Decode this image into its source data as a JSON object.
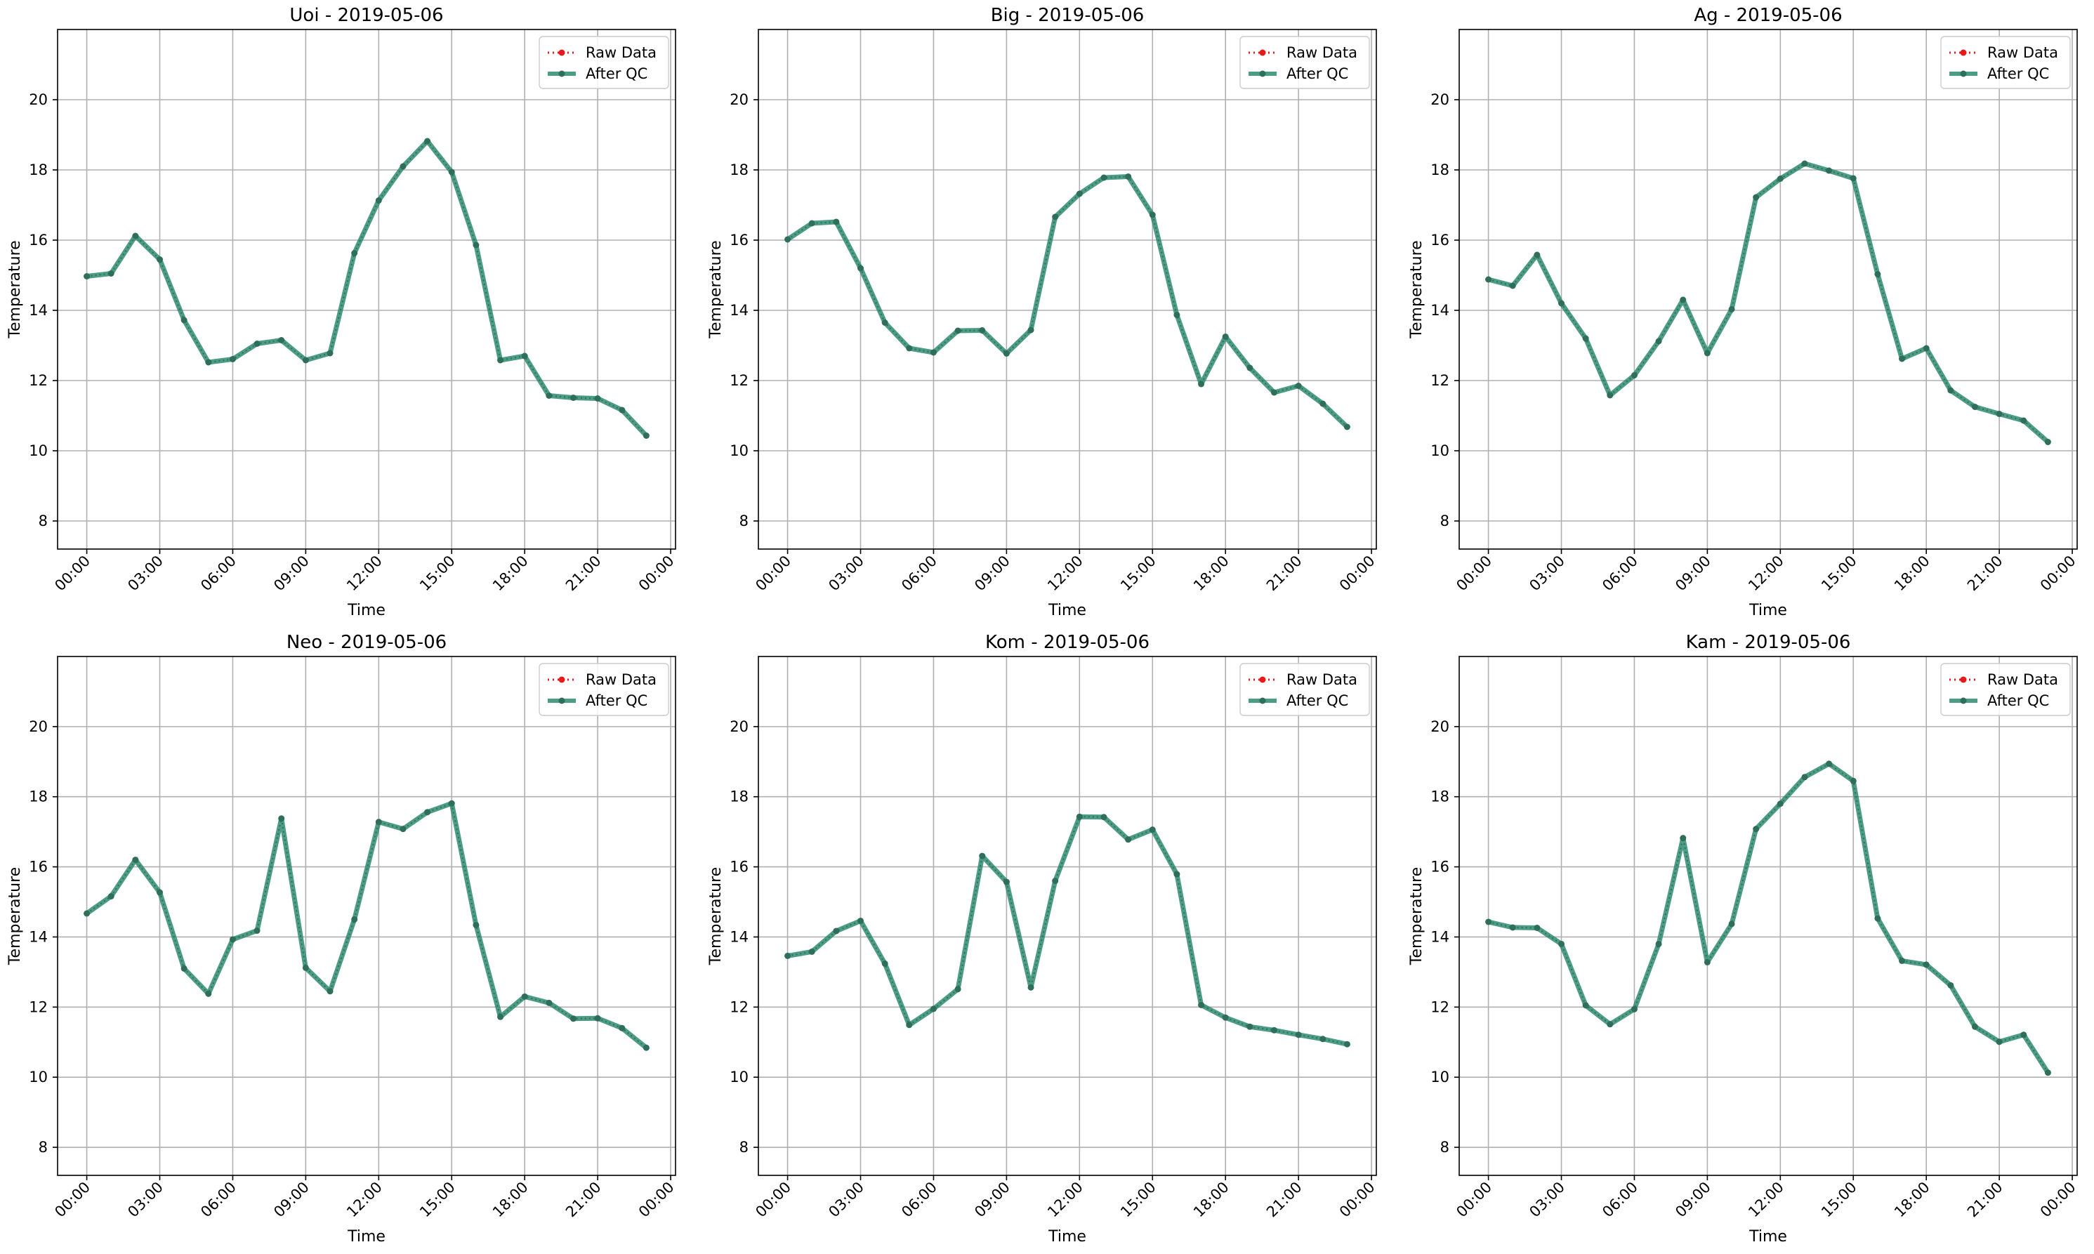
{
  "colors": {
    "raw": "#e41a1c",
    "qc": "#2e8b70",
    "qc_marker": "#2f6e5a",
    "grid": "#b0b0b0"
  },
  "shared": {
    "xlabel": "Time",
    "ylabel": "Temperature",
    "legend_raw": "Raw Data",
    "legend_qc": "After QC",
    "legend_placement": "top-right",
    "grid": true,
    "ylim": [
      7.2,
      22.0
    ],
    "y_ticks": [
      8,
      10,
      12,
      14,
      16,
      18,
      20
    ],
    "x_range_hours": [
      -1.2,
      24.2
    ],
    "x_tick_hours": [
      0,
      3,
      6,
      9,
      12,
      15,
      18,
      21,
      24
    ],
    "x_tick_labels": [
      "00:00",
      "03:00",
      "06:00",
      "09:00",
      "12:00",
      "15:00",
      "18:00",
      "21:00",
      "00:00"
    ]
  },
  "chart_data": [
    {
      "type": "line",
      "title": "Uoi - 2019-05-06",
      "x": [
        0,
        1,
        2,
        3,
        4,
        5,
        6,
        7,
        8,
        9,
        10,
        11,
        12,
        13,
        14,
        15,
        16,
        17,
        18,
        19,
        20,
        21,
        22,
        23
      ],
      "series": [
        {
          "name": "Raw Data",
          "values": [
            14.97,
            15.05,
            16.12,
            15.45,
            13.72,
            12.52,
            12.61,
            13.05,
            13.15,
            12.58,
            12.78,
            15.63,
            17.13,
            18.1,
            18.82,
            17.94,
            15.86,
            12.58,
            12.7,
            11.57,
            11.51,
            11.49,
            11.16,
            10.43
          ]
        },
        {
          "name": "After QC",
          "values": [
            14.97,
            15.05,
            16.12,
            15.45,
            13.72,
            12.52,
            12.61,
            13.05,
            13.15,
            12.58,
            12.78,
            15.63,
            17.13,
            18.1,
            18.82,
            17.94,
            15.86,
            12.58,
            12.7,
            11.57,
            11.51,
            11.49,
            11.16,
            10.43
          ]
        }
      ]
    },
    {
      "type": "line",
      "title": "Big - 2019-05-06",
      "x": [
        0,
        1,
        2,
        3,
        4,
        5,
        6,
        7,
        8,
        9,
        10,
        11,
        12,
        13,
        14,
        15,
        16,
        17,
        18,
        19,
        20,
        21,
        22,
        23
      ],
      "series": [
        {
          "name": "Raw Data",
          "values": [
            16.02,
            16.48,
            16.52,
            15.2,
            13.65,
            12.92,
            12.8,
            13.42,
            13.43,
            12.77,
            13.44,
            16.66,
            17.32,
            17.78,
            17.81,
            16.72,
            13.87,
            11.9,
            13.25,
            12.36,
            11.66,
            11.85,
            11.34,
            10.68
          ]
        },
        {
          "name": "After QC",
          "values": [
            16.02,
            16.48,
            16.52,
            15.2,
            13.65,
            12.92,
            12.8,
            13.42,
            13.43,
            12.77,
            13.44,
            16.66,
            17.32,
            17.78,
            17.81,
            16.72,
            13.87,
            11.9,
            13.25,
            12.36,
            11.66,
            11.85,
            11.34,
            10.68
          ]
        }
      ]
    },
    {
      "type": "line",
      "title": "Ag - 2019-05-06",
      "x": [
        0,
        1,
        2,
        3,
        4,
        5,
        6,
        7,
        8,
        9,
        10,
        11,
        12,
        13,
        14,
        15,
        16,
        17,
        18,
        19,
        20,
        21,
        22,
        23
      ],
      "series": [
        {
          "name": "Raw Data",
          "values": [
            14.88,
            14.7,
            15.58,
            14.2,
            13.2,
            11.58,
            12.15,
            13.12,
            14.3,
            12.78,
            14.03,
            17.22,
            17.75,
            18.18,
            17.98,
            17.76,
            15.03,
            12.62,
            12.92,
            11.72,
            11.25,
            11.05,
            10.86,
            10.25
          ]
        },
        {
          "name": "After QC",
          "values": [
            14.88,
            14.7,
            15.58,
            14.2,
            13.2,
            11.58,
            12.15,
            13.12,
            14.3,
            12.78,
            14.03,
            17.22,
            17.75,
            18.18,
            17.98,
            17.76,
            15.03,
            12.62,
            12.92,
            11.72,
            11.25,
            11.05,
            10.86,
            10.25
          ]
        }
      ]
    },
    {
      "type": "line",
      "title": "Neo - 2019-05-06",
      "x": [
        0,
        1,
        2,
        3,
        4,
        5,
        6,
        7,
        8,
        9,
        10,
        11,
        12,
        13,
        14,
        15,
        16,
        17,
        18,
        19,
        20,
        21,
        22,
        23
      ],
      "series": [
        {
          "name": "Raw Data",
          "values": [
            14.67,
            15.16,
            16.2,
            15.27,
            13.1,
            12.38,
            13.93,
            14.18,
            17.38,
            13.12,
            12.45,
            14.5,
            17.28,
            17.08,
            17.56,
            17.81,
            14.34,
            11.72,
            12.3,
            12.12,
            11.67,
            11.68,
            11.4,
            10.84
          ]
        },
        {
          "name": "After QC",
          "values": [
            14.67,
            15.16,
            16.2,
            15.27,
            13.1,
            12.38,
            13.93,
            14.18,
            17.38,
            13.12,
            12.45,
            14.5,
            17.28,
            17.08,
            17.56,
            17.81,
            14.34,
            11.72,
            12.3,
            12.12,
            11.67,
            11.68,
            11.4,
            10.84
          ]
        }
      ]
    },
    {
      "type": "line",
      "title": "Kom - 2019-05-06",
      "x": [
        0,
        1,
        2,
        3,
        4,
        5,
        6,
        7,
        8,
        9,
        10,
        11,
        12,
        13,
        14,
        15,
        16,
        17,
        18,
        19,
        20,
        21,
        22,
        23
      ],
      "series": [
        {
          "name": "Raw Data",
          "values": [
            13.46,
            13.58,
            14.17,
            14.46,
            13.24,
            11.49,
            11.95,
            12.51,
            16.31,
            15.57,
            12.56,
            15.6,
            17.43,
            17.42,
            16.78,
            17.06,
            15.79,
            12.06,
            11.7,
            11.44,
            11.34,
            11.21,
            11.09,
            10.94
          ]
        },
        {
          "name": "After QC",
          "values": [
            13.46,
            13.58,
            14.17,
            14.46,
            13.24,
            11.49,
            11.95,
            12.51,
            16.31,
            15.57,
            12.56,
            15.6,
            17.43,
            17.42,
            16.78,
            17.06,
            15.79,
            12.06,
            11.7,
            11.44,
            11.34,
            11.21,
            11.09,
            10.94
          ]
        }
      ]
    },
    {
      "type": "line",
      "title": "Kam - 2019-05-06",
      "x": [
        0,
        1,
        2,
        3,
        4,
        5,
        6,
        7,
        8,
        9,
        10,
        11,
        12,
        13,
        14,
        15,
        16,
        17,
        18,
        19,
        20,
        21,
        22,
        23
      ],
      "series": [
        {
          "name": "Raw Data",
          "values": [
            14.43,
            14.27,
            14.26,
            13.8,
            12.05,
            11.51,
            11.94,
            13.8,
            16.82,
            13.28,
            14.37,
            17.08,
            17.8,
            18.56,
            18.94,
            18.45,
            14.53,
            13.32,
            13.21,
            12.62,
            11.44,
            11.01,
            11.21,
            10.13
          ]
        },
        {
          "name": "After QC",
          "values": [
            14.43,
            14.27,
            14.26,
            13.8,
            12.05,
            11.51,
            11.94,
            13.8,
            16.82,
            13.28,
            14.37,
            17.08,
            17.8,
            18.56,
            18.94,
            18.45,
            14.53,
            13.32,
            13.21,
            12.62,
            11.44,
            11.01,
            11.21,
            10.13
          ]
        }
      ]
    }
  ]
}
